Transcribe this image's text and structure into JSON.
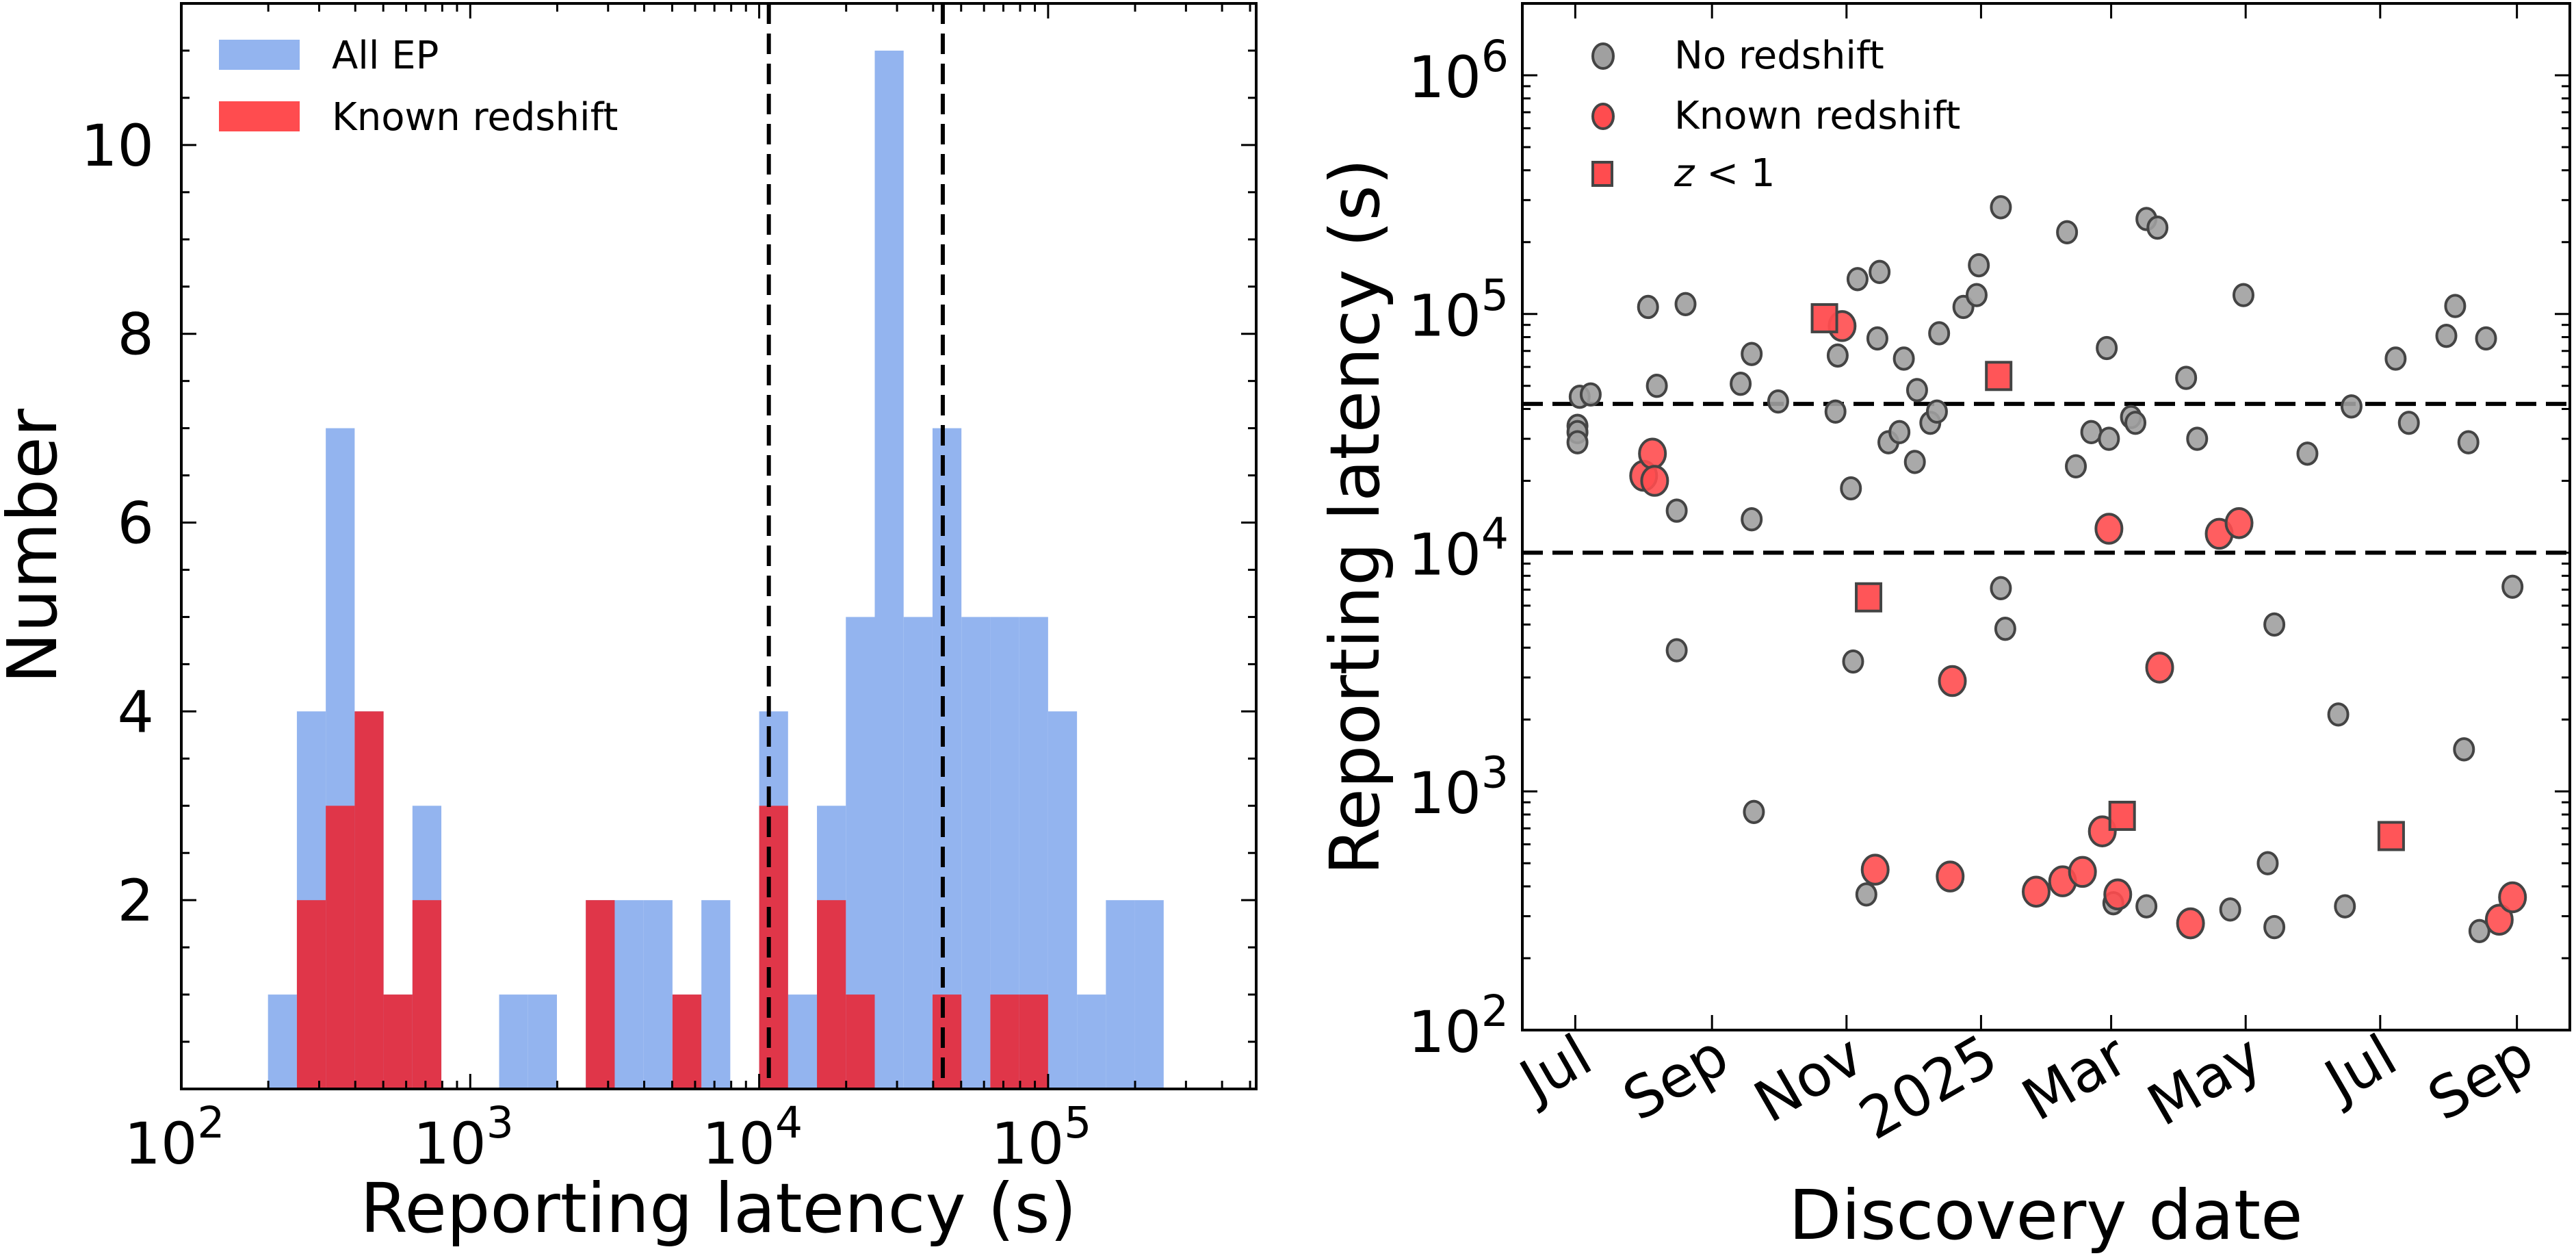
{
  "chart_data": [
    {
      "type": "bar",
      "subtype": "histogram",
      "xscale": "log",
      "xlabel": "Reporting latency (s)",
      "ylabel": "Number",
      "xlim": [
        100,
        525000
      ],
      "ylim": [
        0,
        11.5
      ],
      "xticks": [
        {
          "value": 100,
          "base": "10",
          "exp": "2"
        },
        {
          "value": 1000,
          "base": "10",
          "exp": "3"
        },
        {
          "value": 10000,
          "base": "10",
          "exp": "4"
        },
        {
          "value": 100000,
          "base": "10",
          "exp": "5"
        }
      ],
      "yticks": [
        2,
        4,
        6,
        8,
        10
      ],
      "bin_width_dex": 0.1,
      "bin_edges_log10": [
        2.3,
        2.4,
        2.5,
        2.6,
        2.7,
        2.8,
        2.9,
        3.0,
        3.1,
        3.2,
        3.3,
        3.4,
        3.5,
        3.6,
        3.7,
        3.8,
        3.9,
        4.0,
        4.1,
        4.2,
        4.3,
        4.4,
        4.5,
        4.6,
        4.7,
        4.8,
        4.9,
        5.0,
        5.1,
        5.2,
        5.3,
        5.4
      ],
      "series": [
        {
          "name": "All EP",
          "color": "#93b4ef",
          "values": [
            1,
            4,
            7,
            4,
            1,
            3,
            0,
            0,
            1,
            1,
            0,
            2,
            2,
            2,
            1,
            2,
            0,
            4,
            1,
            3,
            5,
            11,
            5,
            7,
            5,
            5,
            5,
            4,
            1,
            2,
            2
          ]
        },
        {
          "name": "Known redshift",
          "color": "#e03649",
          "values": [
            0,
            2,
            3,
            4,
            1,
            2,
            0,
            0,
            0,
            0,
            0,
            2,
            0,
            0,
            1,
            0,
            0,
            3,
            0,
            2,
            1,
            0,
            0,
            1,
            0,
            1,
            1,
            0,
            0,
            0,
            0
          ]
        }
      ],
      "vlines": [
        10800,
        43200
      ],
      "legend": {
        "position": "top-left",
        "entries": [
          {
            "label": "All EP",
            "color": "#93b4ef"
          },
          {
            "label": "Known redshift",
            "color": "#ff4c4f"
          }
        ]
      },
      "grid": false
    },
    {
      "type": "scatter",
      "xlabel": "Discovery date",
      "ylabel": "Reporting latency (s)",
      "yscale": "log",
      "xlim": [
        "2024-06-07",
        "2025-09-25"
      ],
      "ylim": [
        100,
        2000000
      ],
      "xticks": [
        {
          "date": "2024-07-01",
          "label": "Jul"
        },
        {
          "date": "2024-09-01",
          "label": "Sep"
        },
        {
          "date": "2024-11-01",
          "label": "Nov"
        },
        {
          "date": "2025-01-01",
          "label": "2025"
        },
        {
          "date": "2025-03-01",
          "label": "Mar"
        },
        {
          "date": "2025-05-01",
          "label": "May"
        },
        {
          "date": "2025-07-01",
          "label": "Jul"
        },
        {
          "date": "2025-09-01",
          "label": "Sep"
        }
      ],
      "yticks": [
        {
          "value": 100,
          "base": "10",
          "exp": "2"
        },
        {
          "value": 1000,
          "base": "10",
          "exp": "3"
        },
        {
          "value": 10000,
          "base": "10",
          "exp": "4"
        },
        {
          "value": 100000,
          "base": "10",
          "exp": "5"
        },
        {
          "value": 1000000,
          "base": "10",
          "exp": "6"
        }
      ],
      "hlines": [
        10000,
        42000
      ],
      "legend": {
        "position": "top-left",
        "entries": [
          {
            "label": "No redshift",
            "marker": "circle",
            "color": "#a0a0a0"
          },
          {
            "label": "Known redshift",
            "marker": "circle",
            "color": "#ff4c4f"
          },
          {
            "label_italic": "z",
            "label_rest": " < 1",
            "marker": "square",
            "color": "#ff4c4f"
          }
        ]
      },
      "series": [
        {
          "name": "No redshift",
          "marker": "circle",
          "color": "#a0a0a0",
          "points": [
            [
              "2024-07-02",
              34000
            ],
            [
              "2024-07-02",
              32000
            ],
            [
              "2024-07-02",
              29000
            ],
            [
              "2024-07-03",
              45000
            ],
            [
              "2024-07-08",
              46000
            ],
            [
              "2024-08-03",
              107000
            ],
            [
              "2024-08-07",
              50000
            ],
            [
              "2024-08-16",
              15000
            ],
            [
              "2024-08-16",
              3900
            ],
            [
              "2024-08-20",
              110000
            ],
            [
              "2024-09-14",
              51000
            ],
            [
              "2024-09-19",
              68000
            ],
            [
              "2024-09-19",
              13800
            ],
            [
              "2024-09-20",
              820
            ],
            [
              "2024-10-01",
              43000
            ],
            [
              "2024-10-28",
              67000
            ],
            [
              "2024-10-27",
              39000
            ],
            [
              "2024-11-03",
              18600
            ],
            [
              "2024-11-04",
              3500
            ],
            [
              "2024-11-06",
              140000
            ],
            [
              "2024-11-10",
              370
            ],
            [
              "2024-11-15",
              79000
            ],
            [
              "2024-11-16",
              150000
            ],
            [
              "2024-11-20",
              29000
            ],
            [
              "2024-11-25",
              32000
            ],
            [
              "2024-11-27",
              65000
            ],
            [
              "2024-12-02",
              24000
            ],
            [
              "2024-12-03",
              48000
            ],
            [
              "2024-12-09",
              35000
            ],
            [
              "2024-12-12",
              39000
            ],
            [
              "2024-12-13",
              83000
            ],
            [
              "2024-12-24",
              107000
            ],
            [
              "2024-12-30",
              120000
            ],
            [
              "2024-12-31",
              160000
            ],
            [
              "2025-01-10",
              280000
            ],
            [
              "2025-01-10",
              7100
            ],
            [
              "2025-01-12",
              4800
            ],
            [
              "2025-02-09",
              220000
            ],
            [
              "2025-02-13",
              23000
            ],
            [
              "2025-02-20",
              32000
            ],
            [
              "2025-02-27",
              72000
            ],
            [
              "2025-02-28",
              30000
            ],
            [
              "2025-03-02",
              340
            ],
            [
              "2025-03-10",
              37000
            ],
            [
              "2025-03-12",
              35000
            ],
            [
              "2025-03-17",
              250000
            ],
            [
              "2025-03-17",
              330
            ],
            [
              "2025-03-22",
              230000
            ],
            [
              "2025-04-04",
              54000
            ],
            [
              "2025-04-09",
              30000
            ],
            [
              "2025-04-24",
              320
            ],
            [
              "2025-04-30",
              120000
            ],
            [
              "2025-05-11",
              500
            ],
            [
              "2025-05-14",
              5000
            ],
            [
              "2025-05-14",
              270
            ],
            [
              "2025-05-29",
              26000
            ],
            [
              "2025-06-12",
              2100
            ],
            [
              "2025-06-15",
              330
            ],
            [
              "2025-06-18",
              41000
            ],
            [
              "2025-07-08",
              65000
            ],
            [
              "2025-07-14",
              35000
            ],
            [
              "2025-07-31",
              81000
            ],
            [
              "2025-08-04",
              108000
            ],
            [
              "2025-08-08",
              1500
            ],
            [
              "2025-08-10",
              29000
            ],
            [
              "2025-08-15",
              260
            ],
            [
              "2025-08-18",
              79000
            ],
            [
              "2025-08-30",
              7200
            ]
          ]
        },
        {
          "name": "Known redshift",
          "marker": "circle",
          "color": "#ff4c4f",
          "points": [
            [
              "2024-08-01",
              21000
            ],
            [
              "2024-08-05",
              26000
            ],
            [
              "2024-08-06",
              20000
            ],
            [
              "2024-10-30",
              89000
            ],
            [
              "2024-11-14",
              470
            ],
            [
              "2024-12-19",
              2900
            ],
            [
              "2024-12-18",
              440
            ],
            [
              "2025-01-26",
              380
            ],
            [
              "2025-02-07",
              420
            ],
            [
              "2025-02-16",
              460
            ],
            [
              "2025-02-25",
              680
            ],
            [
              "2025-02-28",
              12600
            ],
            [
              "2025-03-04",
              370
            ],
            [
              "2025-03-23",
              3300
            ],
            [
              "2025-04-06",
              280
            ],
            [
              "2025-04-19",
              12000
            ],
            [
              "2025-04-28",
              13300
            ],
            [
              "2025-08-24",
              290
            ],
            [
              "2025-08-30",
              360
            ]
          ]
        },
        {
          "name": "z < 1",
          "marker": "square",
          "color": "#ff4c4f",
          "points": [
            [
              "2024-10-22",
              96000
            ],
            [
              "2024-11-11",
              6500
            ],
            [
              "2025-01-09",
              55000
            ],
            [
              "2025-03-06",
              790
            ],
            [
              "2025-07-06",
              650
            ]
          ]
        }
      ],
      "grid": false
    }
  ]
}
